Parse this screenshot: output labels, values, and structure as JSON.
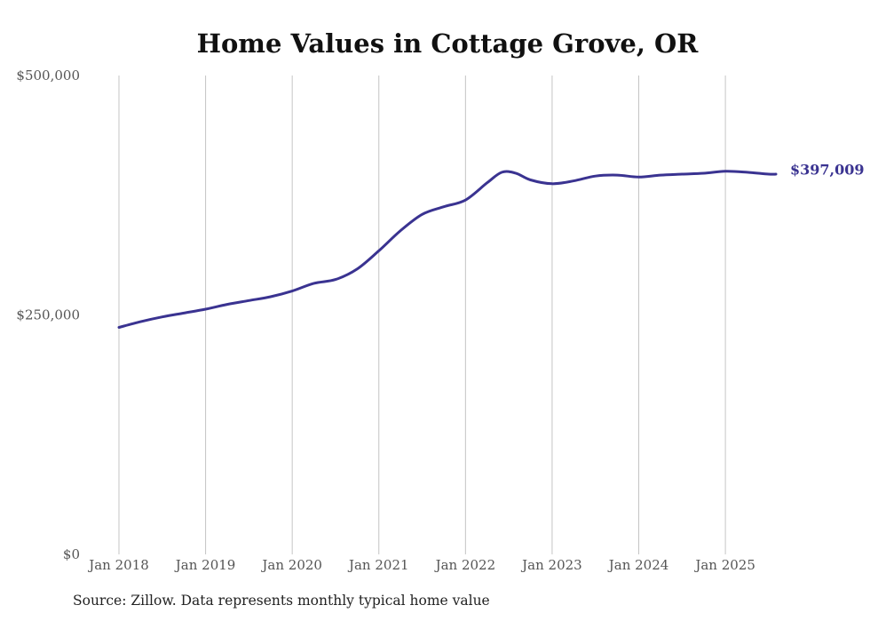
{
  "chart_data": {
    "type": "line",
    "title": "Home Values in Cottage Grove, OR",
    "xlabel": "",
    "ylabel": "",
    "ylim": [
      0,
      500000
    ],
    "y_ticks": [
      {
        "value": 0,
        "label": "$0"
      },
      {
        "value": 250000,
        "label": "$250,000"
      },
      {
        "value": 500000,
        "label": "$500,000"
      }
    ],
    "x_ticks": [
      {
        "value": 2018.0,
        "label": "Jan 2018"
      },
      {
        "value": 2019.0,
        "label": "Jan 2019"
      },
      {
        "value": 2020.0,
        "label": "Jan 2020"
      },
      {
        "value": 2021.0,
        "label": "Jan 2021"
      },
      {
        "value": 2022.0,
        "label": "Jan 2022"
      },
      {
        "value": 2023.0,
        "label": "Jan 2023"
      },
      {
        "value": 2024.0,
        "label": "Jan 2024"
      },
      {
        "value": 2025.0,
        "label": "Jan 2025"
      }
    ],
    "xlim": [
      2018.0,
      2025.583
    ],
    "grid": "vertical",
    "series": [
      {
        "name": "Typical home value",
        "color": "#3a3391",
        "end_label": "$397,009",
        "points": [
          [
            2018.0,
            237000
          ],
          [
            2018.25,
            243000
          ],
          [
            2018.5,
            248000
          ],
          [
            2018.75,
            252000
          ],
          [
            2019.0,
            256000
          ],
          [
            2019.25,
            261000
          ],
          [
            2019.5,
            265000
          ],
          [
            2019.75,
            269000
          ],
          [
            2020.0,
            275000
          ],
          [
            2020.25,
            283000
          ],
          [
            2020.5,
            287000
          ],
          [
            2020.75,
            298000
          ],
          [
            2021.0,
            317000
          ],
          [
            2021.25,
            338000
          ],
          [
            2021.5,
            355000
          ],
          [
            2021.75,
            363000
          ],
          [
            2022.0,
            370000
          ],
          [
            2022.25,
            388000
          ],
          [
            2022.42,
            399000
          ],
          [
            2022.58,
            398000
          ],
          [
            2022.75,
            391000
          ],
          [
            2023.0,
            387000
          ],
          [
            2023.25,
            390000
          ],
          [
            2023.5,
            395000
          ],
          [
            2023.75,
            396000
          ],
          [
            2024.0,
            394000
          ],
          [
            2024.25,
            396000
          ],
          [
            2024.5,
            397000
          ],
          [
            2024.75,
            398000
          ],
          [
            2025.0,
            400000
          ],
          [
            2025.25,
            399000
          ],
          [
            2025.5,
            397000
          ],
          [
            2025.583,
            397009
          ]
        ]
      }
    ],
    "source": "Source: Zillow. Data represents monthly typical home value"
  }
}
